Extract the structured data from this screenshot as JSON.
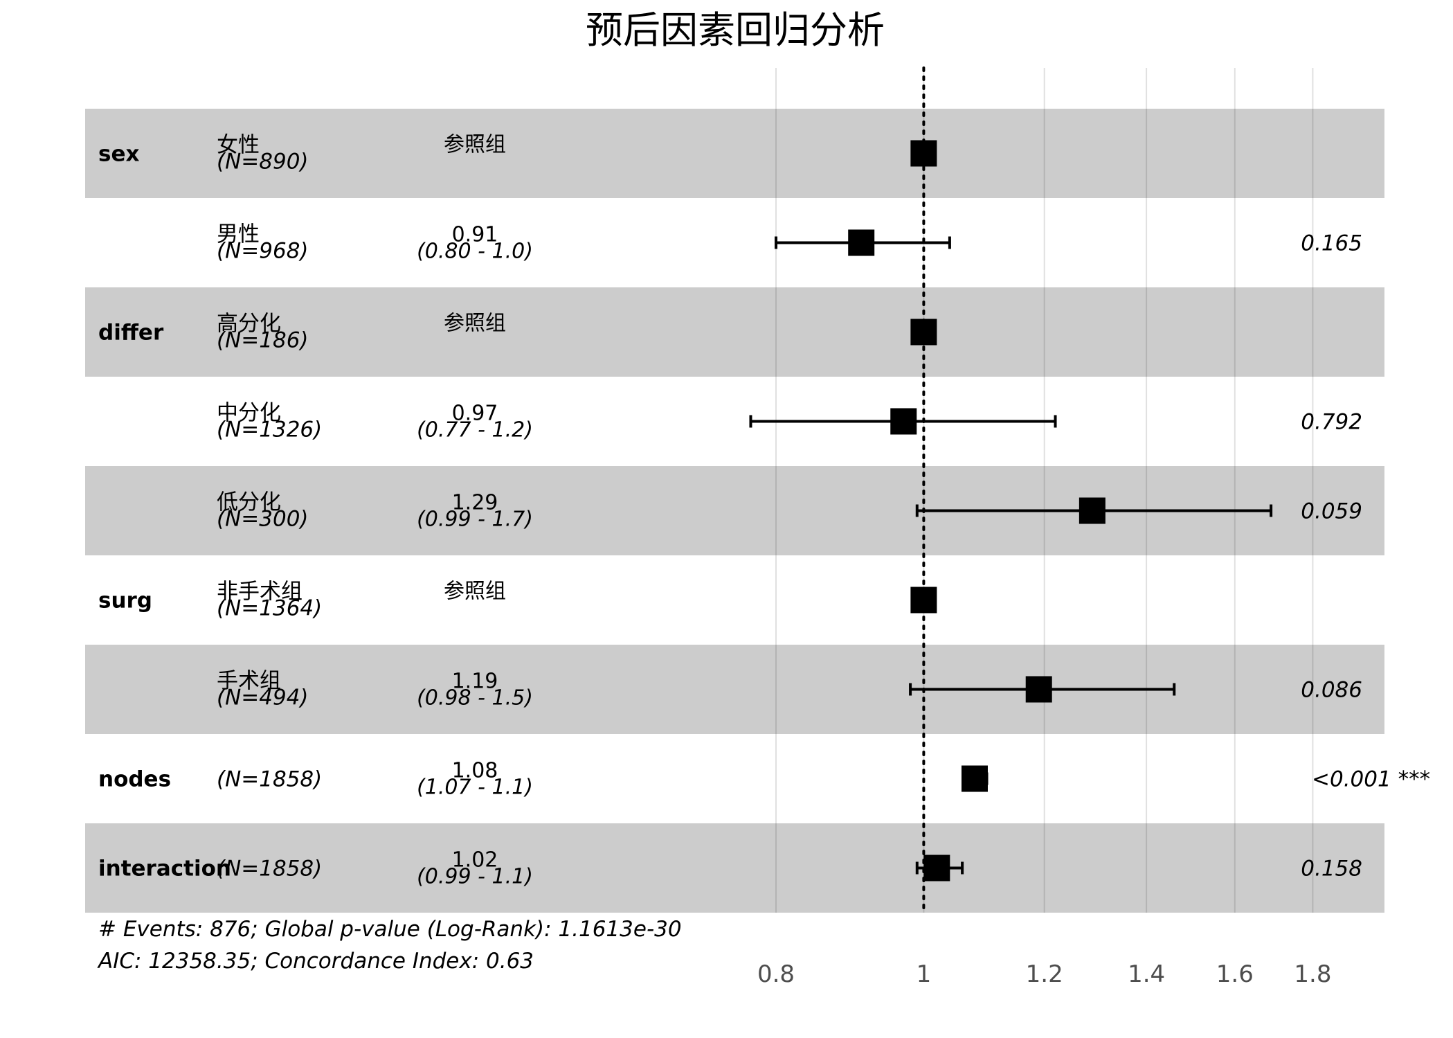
{
  "chart_data": {
    "type": "forest",
    "title": "预后因素回归分析",
    "x_scale": "log",
    "xlim": [
      0.735,
      1.88
    ],
    "x_ticks": [
      "0.8",
      "1",
      "1.2",
      "1.4",
      "1.6",
      "1.8"
    ],
    "x_tick_values": [
      0.8,
      1.0,
      1.2,
      1.4,
      1.6,
      1.8
    ],
    "reference_line": 1.0,
    "rows": [
      {
        "variable": "sex",
        "level": "女性",
        "n": "(N=890)",
        "estimate_label": "参照组",
        "ci_label": "",
        "p": "",
        "hr": 1.0,
        "lower": null,
        "upper": null,
        "shaded": true
      },
      {
        "variable": "",
        "level": "男性",
        "n": "(N=968)",
        "estimate_label": "0.91",
        "ci_label": "(0.80 - 1.0)",
        "p": "0.165",
        "hr": 0.91,
        "lower": 0.8,
        "upper": 1.04,
        "shaded": false
      },
      {
        "variable": "differ",
        "level": "高分化",
        "n": "(N=186)",
        "estimate_label": "参照组",
        "ci_label": "",
        "p": "",
        "hr": 1.0,
        "lower": null,
        "upper": null,
        "shaded": true
      },
      {
        "variable": "",
        "level": "中分化",
        "n": "(N=1326)",
        "estimate_label": "0.97",
        "ci_label": "(0.77 - 1.2)",
        "p": "0.792",
        "hr": 0.97,
        "lower": 0.77,
        "upper": 1.22,
        "shaded": false
      },
      {
        "variable": "",
        "level": "低分化",
        "n": "(N=300)",
        "estimate_label": "1.29",
        "ci_label": "(0.99 - 1.7)",
        "p": "0.059",
        "hr": 1.29,
        "lower": 0.99,
        "upper": 1.69,
        "shaded": true
      },
      {
        "variable": "surg",
        "level": "非手术组",
        "n": "(N=1364)",
        "estimate_label": "参照组",
        "ci_label": "",
        "p": "",
        "hr": 1.0,
        "lower": null,
        "upper": null,
        "shaded": false
      },
      {
        "variable": "",
        "level": "手术组",
        "n": "(N=494)",
        "estimate_label": "1.19",
        "ci_label": "(0.98 - 1.5)",
        "p": "0.086",
        "hr": 1.19,
        "lower": 0.98,
        "upper": 1.46,
        "shaded": true
      },
      {
        "variable": "nodes",
        "level": "",
        "n": "(N=1858)",
        "estimate_label": "1.08",
        "ci_label": "(1.07 - 1.1)",
        "p": "<0.001 ***",
        "hr": 1.08,
        "lower": 1.07,
        "upper": 1.1,
        "shaded": false
      },
      {
        "variable": "interaction",
        "level": "",
        "n": "(N=1858)",
        "estimate_label": "1.02",
        "ci_label": "(0.99 - 1.1)",
        "p": "0.158",
        "hr": 1.02,
        "lower": 0.99,
        "upper": 1.06,
        "shaded": true
      }
    ],
    "footnote": [
      "# Events: 876; Global p-value (Log-Rank): 1.1613e-30",
      "AIC: 12358.35; Concordance Index: 0.63"
    ]
  }
}
